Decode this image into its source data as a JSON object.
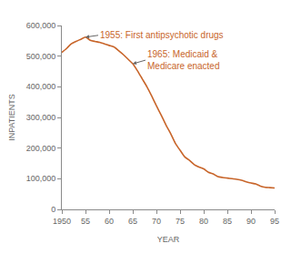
{
  "chart_data": {
    "type": "line",
    "x_label": "YEAR",
    "y_label": "INPATIENTS",
    "color": "#c8652a",
    "grid": false,
    "x": [
      1950,
      1951,
      1952,
      1953,
      1954,
      1955,
      1956,
      1957,
      1958,
      1959,
      1960,
      1961,
      1962,
      1963,
      1964,
      1965,
      1966,
      1967,
      1968,
      1969,
      1970,
      1971,
      1972,
      1973,
      1974,
      1975,
      1976,
      1977,
      1978,
      1979,
      1980,
      1981,
      1982,
      1983,
      1984,
      1985,
      1986,
      1987,
      1988,
      1989,
      1990,
      1991,
      1992,
      1993,
      1994,
      1995
    ],
    "values": [
      512000,
      525000,
      540000,
      548000,
      555000,
      562000,
      552000,
      548000,
      545000,
      540000,
      535000,
      530000,
      518000,
      505000,
      490000,
      475000,
      452000,
      426000,
      400000,
      370000,
      338000,
      308000,
      276000,
      248000,
      216000,
      193000,
      171000,
      160000,
      146000,
      138000,
      132000,
      121000,
      116000,
      107000,
      104000,
      102000,
      100000,
      98000,
      95000,
      90000,
      86000,
      83000,
      76000,
      72000,
      71000,
      70000
    ],
    "xlim": [
      1950,
      1995
    ],
    "xticks": [
      1950,
      {
        "value": 1955,
        "label": "55"
      },
      {
        "value": 1960,
        "label": "60"
      },
      {
        "value": 1965,
        "label": "65"
      },
      {
        "value": 1970,
        "label": "70"
      },
      {
        "value": 1975,
        "label": "75"
      },
      {
        "value": 1980,
        "label": "80"
      },
      {
        "value": 1985,
        "label": "85"
      },
      {
        "value": 1990,
        "label": "90"
      },
      {
        "value": 1995,
        "label": "95"
      }
    ],
    "ylim": [
      0,
      600000
    ],
    "yticks": [
      0,
      {
        "value": 100000,
        "label": "100,000"
      },
      {
        "value": 200000,
        "label": "200,000"
      },
      {
        "value": 300000,
        "label": "300,000"
      },
      {
        "value": 400000,
        "label": "400,000"
      },
      {
        "value": 500000,
        "label": "500,000"
      },
      {
        "value": 600000,
        "label": "600,000"
      }
    ],
    "annotations": [
      {
        "text": "1955: First antipsychotic drugs",
        "x": 1955
      },
      {
        "text": "1965: Medicaid &\nMedicare enacted",
        "x": 1965
      }
    ]
  }
}
